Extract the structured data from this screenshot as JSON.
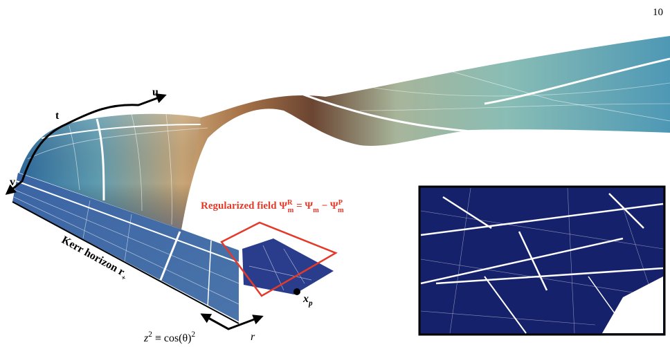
{
  "page_number": "10",
  "axis_labels": {
    "u": "u",
    "t": "t",
    "v": "v",
    "r": "r"
  },
  "horizon_label": {
    "text": "Kerr horizon r",
    "sub": "+"
  },
  "regularized_label": {
    "lhs": "Regularized field Ψ",
    "lhs_sup": "R",
    "lhs_sub": "m",
    "eq": " = Ψ",
    "eq_sub": "m",
    "minus": " − Ψ",
    "minus_sup": "P",
    "minus_sub": "m"
  },
  "particle_label": {
    "text": "x",
    "sub": "p"
  },
  "coordinate_label": {
    "z": "z",
    "z_sup": "2",
    "rest": " ≡ cos(θ)",
    "rest_sup": "2"
  }
}
